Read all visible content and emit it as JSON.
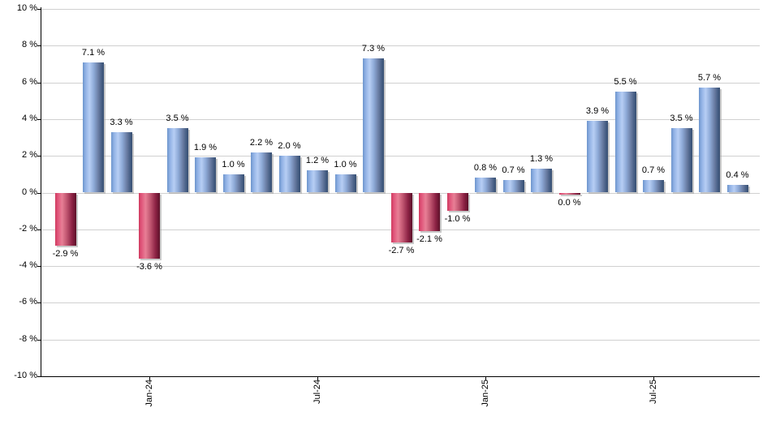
{
  "chart_data": {
    "type": "bar",
    "title": "",
    "xlabel": "",
    "ylabel": "",
    "unit": "%",
    "ylim": [
      -10,
      10
    ],
    "ytick_step": 2,
    "grid": true,
    "legend": null,
    "yticks": [
      "10 %",
      "8 %",
      "6 %",
      "4 %",
      "2 %",
      "0 %",
      "-2 %",
      "-4 %",
      "-6 %",
      "-8 %",
      "-10 %"
    ],
    "bars": [
      {
        "value": -2.9,
        "label": "-2.9 %",
        "style": "negative"
      },
      {
        "value": 7.1,
        "label": "7.1 %",
        "style": "positive"
      },
      {
        "value": 3.3,
        "label": "3.3 %",
        "style": "positive"
      },
      {
        "value": -3.6,
        "label": "-3.6 %",
        "style": "negative"
      },
      {
        "value": 3.5,
        "label": "3.5 %",
        "style": "positive"
      },
      {
        "value": 1.9,
        "label": "1.9 %",
        "style": "positive"
      },
      {
        "value": 1.0,
        "label": "1.0 %",
        "style": "positive"
      },
      {
        "value": 2.2,
        "label": "2.2 %",
        "style": "positive"
      },
      {
        "value": 2.0,
        "label": "2.0 %",
        "style": "positive"
      },
      {
        "value": 1.2,
        "label": "1.2 %",
        "style": "positive"
      },
      {
        "value": 1.0,
        "label": "1.0 %",
        "style": "positive"
      },
      {
        "value": 7.3,
        "label": "7.3 %",
        "style": "positive"
      },
      {
        "value": -2.7,
        "label": "-2.7 %",
        "style": "negative"
      },
      {
        "value": -2.1,
        "label": "-2.1 %",
        "style": "negative"
      },
      {
        "value": -1.0,
        "label": "-1.0 %",
        "style": "negative"
      },
      {
        "value": 0.8,
        "label": "0.8 %",
        "style": "positive"
      },
      {
        "value": 0.7,
        "label": "0.7 %",
        "style": "positive"
      },
      {
        "value": 1.3,
        "label": "1.3 %",
        "style": "positive"
      },
      {
        "value": 0.0,
        "label": "0.0 %",
        "style": "negative"
      },
      {
        "value": 3.9,
        "label": "3.9 %",
        "style": "positive"
      },
      {
        "value": 5.5,
        "label": "5.5 %",
        "style": "positive"
      },
      {
        "value": 0.7,
        "label": "0.7 %",
        "style": "positive"
      },
      {
        "value": 3.5,
        "label": "3.5 %",
        "style": "positive"
      },
      {
        "value": 5.7,
        "label": "5.7 %",
        "style": "positive"
      },
      {
        "value": 0.4,
        "label": "0.4 %",
        "style": "positive"
      }
    ],
    "xticks": [
      {
        "label": "Jan-24",
        "bar_index": 3
      },
      {
        "label": "Jul-24",
        "bar_index": 9
      },
      {
        "label": "Jan-25",
        "bar_index": 15
      },
      {
        "label": "Jul-25",
        "bar_index": 21
      }
    ],
    "colors": {
      "positive_base": "#6d95cc",
      "positive_light": "#b7cef4",
      "positive_dark": "#3a5173",
      "negative_base": "#cf3a5e",
      "negative_light": "#e87f95",
      "negative_dark": "#5c1129",
      "gridline": "#d0d0d0",
      "axis": "#000000",
      "text": "#000000",
      "background": "#ffffff"
    }
  }
}
